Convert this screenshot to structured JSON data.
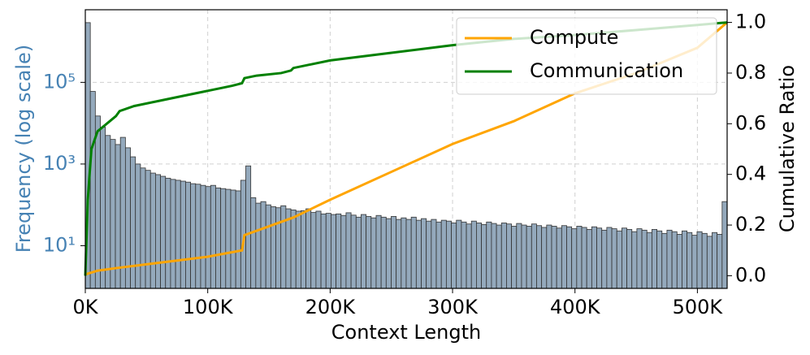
{
  "chart_data": {
    "type": "histogram",
    "xlabel": "Context Length",
    "ylabel": "Frequency (log scale)",
    "ylabel_color": "#4682b4",
    "y2label": "Cumulative Ratio",
    "yscale": "log",
    "grid": true,
    "legend_loc": "upper right",
    "color": "#94a9bc",
    "edgecolor": "#333333",
    "xlim": [
      0,
      524288
    ],
    "xticks": [
      {
        "value": 0,
        "label": "0K"
      },
      {
        "value": 100000,
        "label": "100K"
      },
      {
        "value": 200000,
        "label": "200K"
      },
      {
        "value": 300000,
        "label": "300K"
      },
      {
        "value": 400000,
        "label": "400K"
      },
      {
        "value": 500000,
        "label": "500K"
      }
    ],
    "ylim": [
      0.9,
      6000000
    ],
    "yticks": [
      {
        "value": 10,
        "label": "10¹"
      },
      {
        "value": 1000,
        "label": "10³"
      },
      {
        "value": 100000,
        "label": "10⁵"
      }
    ],
    "y2lim": [
      -0.05,
      1.05
    ],
    "y2ticks": [
      {
        "value": 0,
        "label": "0.0"
      },
      0.2,
      0.4,
      0.6,
      0.8,
      {
        "value": 1,
        "label": "1.0"
      }
    ],
    "bins": [
      0,
      4096,
      8192,
      12288,
      16384,
      20480,
      24576,
      28672,
      32768,
      36864,
      40960,
      45056,
      49152,
      53248,
      57344,
      61440,
      65536,
      69632,
      73728,
      77824,
      81920,
      86016,
      90112,
      94208,
      98304,
      102400,
      106496,
      110592,
      114688,
      118784,
      122880,
      126976,
      131072,
      135168,
      139264,
      143360,
      147456,
      151552,
      155648,
      159744,
      163840,
      167936,
      172032,
      176128,
      180224,
      184320,
      188416,
      192512,
      196608,
      200704,
      204800,
      208896,
      212992,
      217088,
      221184,
      225280,
      229376,
      233472,
      237568,
      241664,
      245760,
      249856,
      253952,
      258048,
      262144,
      266240,
      270336,
      274432,
      278528,
      282624,
      286720,
      290816,
      294912,
      299008,
      303104,
      307200,
      311296,
      315392,
      319488,
      323584,
      327680,
      331776,
      335872,
      339968,
      344064,
      348160,
      352256,
      356352,
      360448,
      364544,
      368640,
      372736,
      376832,
      380928,
      385024,
      389120,
      393216,
      397312,
      401408,
      405504,
      409600,
      413696,
      417792,
      421888,
      425984,
      430080,
      434176,
      438272,
      442368,
      446464,
      450560,
      454656,
      458752,
      462848,
      466944,
      471040,
      475136,
      479232,
      483328,
      487424,
      491520,
      495616,
      499712,
      503808,
      507904,
      512000,
      516096,
      520192,
      524288
    ],
    "values": [
      2900000,
      60000,
      15000,
      8000,
      5000,
      4000,
      3000,
      4500,
      2500,
      1500,
      1000,
      800,
      700,
      600,
      550,
      500,
      450,
      420,
      400,
      380,
      360,
      330,
      320,
      300,
      280,
      300,
      260,
      250,
      240,
      230,
      220,
      400,
      900,
      150,
      110,
      120,
      100,
      90,
      85,
      95,
      80,
      75,
      70,
      72,
      80,
      65,
      70,
      60,
      62,
      58,
      60,
      55,
      64,
      56,
      50,
      58,
      52,
      48,
      55,
      50,
      46,
      52,
      44,
      48,
      44,
      50,
      42,
      46,
      40,
      44,
      38,
      42,
      40,
      36,
      42,
      38,
      34,
      40,
      36,
      33,
      38,
      35,
      32,
      36,
      34,
      30,
      35,
      32,
      30,
      34,
      31,
      28,
      32,
      30,
      27,
      31,
      29,
      26,
      30,
      28,
      25,
      29,
      27,
      24,
      28,
      26,
      23,
      27,
      25,
      22,
      26,
      24,
      21,
      25,
      23,
      20,
      24,
      22,
      19,
      23,
      21,
      18,
      22,
      20,
      17,
      21,
      19,
      120
    ],
    "series": [
      {
        "name": "Compute",
        "color": "#ffa500",
        "axis": "y2",
        "x": [
          0,
          10000,
          25000,
          50000,
          100000,
          128000,
          130000,
          170000,
          200000,
          250000,
          300000,
          350000,
          400000,
          450000,
          500000,
          524288
        ],
        "values": [
          0.005,
          0.02,
          0.03,
          0.045,
          0.075,
          0.1,
          0.16,
          0.23,
          0.3,
          0.41,
          0.52,
          0.61,
          0.72,
          0.8,
          0.9,
          1.0
        ]
      },
      {
        "name": "Communication",
        "color": "#008000",
        "axis": "y2",
        "x": [
          0,
          2000,
          5000,
          10000,
          20000,
          25000,
          28000,
          40000,
          60000,
          80000,
          100000,
          120000,
          128000,
          130000,
          140000,
          160000,
          168000,
          170000,
          200000,
          250000,
          300000,
          350000,
          400000,
          450000,
          500000,
          524288
        ],
        "values": [
          0,
          0.3,
          0.5,
          0.57,
          0.61,
          0.63,
          0.65,
          0.67,
          0.69,
          0.71,
          0.73,
          0.75,
          0.76,
          0.78,
          0.79,
          0.8,
          0.81,
          0.82,
          0.85,
          0.88,
          0.91,
          0.935,
          0.95,
          0.97,
          0.99,
          1.0
        ]
      }
    ]
  }
}
